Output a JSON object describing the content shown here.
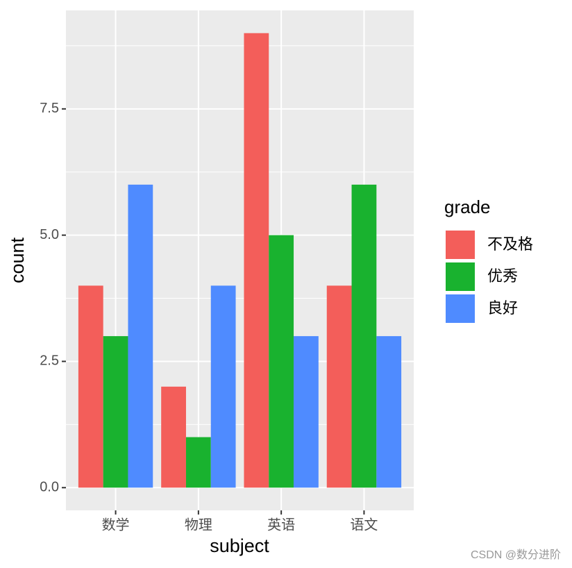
{
  "chart_data": {
    "type": "bar",
    "categories": [
      "数学",
      "物理",
      "英语",
      "语文"
    ],
    "series": [
      {
        "name": "不及格",
        "color": "#f35e5a",
        "values": [
          4,
          2,
          9,
          4
        ]
      },
      {
        "name": "优秀",
        "color": "#19b22f",
        "values": [
          3,
          1,
          5,
          6
        ]
      },
      {
        "name": "良好",
        "color": "#4f8bff",
        "values": [
          6,
          4,
          3,
          3
        ]
      }
    ],
    "ylim": [
      -0.45,
      9.45
    ],
    "yticks": [
      {
        "value": 0,
        "label": "0.0"
      },
      {
        "value": 2.5,
        "label": "2.5"
      },
      {
        "value": 5,
        "label": "5.0"
      },
      {
        "value": 7.5,
        "label": "7.5"
      }
    ],
    "xlabel": "subject",
    "ylabel": "count",
    "legend_title": "grade",
    "legend_position": "right",
    "grid": true,
    "watermark": "CSDN @数分进阶"
  }
}
